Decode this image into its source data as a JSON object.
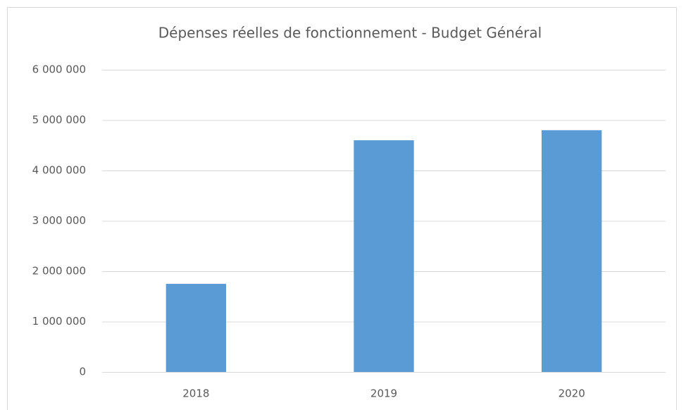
{
  "chart_data": {
    "type": "bar",
    "title": "Dépenses réelles de fonctionnement - Budget Général",
    "categories": [
      "2018",
      "2019",
      "2020"
    ],
    "values": [
      1750000,
      4600000,
      4800000
    ],
    "color": "#5b9bd5",
    "ylim": [
      0,
      6000000
    ],
    "yticks": [
      0,
      {
        "value": 1000000,
        "label": "1 000 000"
      },
      {
        "value": 2000000,
        "label": "2 000 000"
      },
      {
        "value": 3000000,
        "label": "3 000 000"
      },
      {
        "value": 4000000,
        "label": "4 000 000"
      },
      {
        "value": 5000000,
        "label": "5 000 000"
      },
      {
        "value": 6000000,
        "label": "6 000 000"
      }
    ],
    "grid": true
  }
}
